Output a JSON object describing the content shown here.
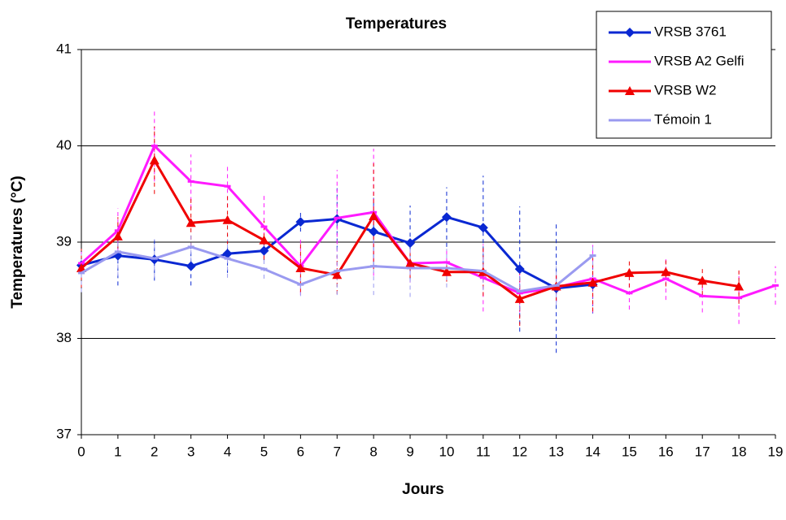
{
  "chart_data": {
    "type": "line",
    "title": "Temperatures",
    "x_label": "Jours",
    "y_label": "Temperatures (°C)",
    "x": [
      0,
      1,
      2,
      3,
      4,
      5,
      6,
      7,
      8,
      9,
      10,
      11,
      12,
      13,
      14,
      15,
      16,
      17,
      18,
      19
    ],
    "xlim": [
      0,
      19
    ],
    "xticks": [
      0,
      1,
      2,
      3,
      4,
      5,
      6,
      7,
      8,
      9,
      10,
      11,
      12,
      13,
      14,
      15,
      16,
      17,
      18,
      19
    ],
    "ylim": [
      37,
      41
    ],
    "yticks": [
      37,
      38,
      39,
      40,
      41
    ],
    "grid": true,
    "legend": "upper right",
    "series": [
      {
        "name": "VRSB 3761",
        "color": "#0a28d2",
        "marker": "diamond",
        "values": [
          38.76,
          38.86,
          38.82,
          38.75,
          38.88,
          38.91,
          39.21,
          39.24,
          39.11,
          38.99,
          39.26,
          39.15,
          38.72,
          38.52,
          38.56,
          null,
          null,
          null,
          null,
          null
        ],
        "errors": [
          0.15,
          0.31,
          0.22,
          0.2,
          0.2,
          0.1,
          0.1,
          0.32,
          0.35,
          0.39,
          0.31,
          0.54,
          0.65,
          0.67,
          0.3,
          null,
          null,
          null,
          null,
          null
        ]
      },
      {
        "name": "VRSB A2 Gelfi",
        "color": "#ff1aff",
        "marker": "dash",
        "values": [
          38.78,
          39.12,
          40.0,
          39.63,
          39.58,
          39.16,
          38.75,
          39.25,
          39.31,
          38.78,
          38.79,
          38.63,
          38.47,
          38.53,
          38.62,
          38.47,
          38.62,
          38.44,
          38.42,
          38.55
        ],
        "errors": [
          0.15,
          0.23,
          0.37,
          0.28,
          0.22,
          0.33,
          0.3,
          0.5,
          0.66,
          0.2,
          0.15,
          0.35,
          0.2,
          0.15,
          0.35,
          0.17,
          0.22,
          0.17,
          0.27,
          0.2
        ]
      },
      {
        "name": "VRSB W2",
        "color": "#f00000",
        "marker": "triangle",
        "values": [
          38.73,
          39.06,
          39.85,
          39.2,
          39.23,
          39.02,
          38.73,
          38.66,
          39.27,
          38.78,
          38.69,
          38.69,
          38.41,
          38.54,
          38.58,
          38.68,
          38.69,
          38.6,
          38.54,
          null
        ],
        "errors": [
          0.2,
          0.2,
          0.35,
          0.25,
          0.25,
          0.2,
          0.25,
          0.2,
          0.55,
          0.15,
          0.1,
          0.25,
          0.28,
          0.15,
          0.3,
          0.15,
          0.15,
          0.15,
          0.18,
          null
        ]
      },
      {
        "name": "Témoin 1",
        "color": "#9a9af0",
        "marker": "dash",
        "values": [
          38.68,
          38.9,
          38.83,
          38.95,
          38.83,
          38.72,
          38.56,
          38.7,
          38.75,
          38.73,
          38.73,
          38.7,
          38.49,
          38.55,
          38.86,
          null,
          null,
          null,
          null,
          null
        ],
        "errors": [
          0.2,
          0.25,
          0.2,
          0.15,
          0.2,
          0.1,
          0.12,
          0.25,
          0.3,
          0.3,
          0.2,
          0.2,
          0.2,
          0.2,
          0.1,
          null,
          null,
          null,
          null,
          null
        ]
      }
    ]
  }
}
